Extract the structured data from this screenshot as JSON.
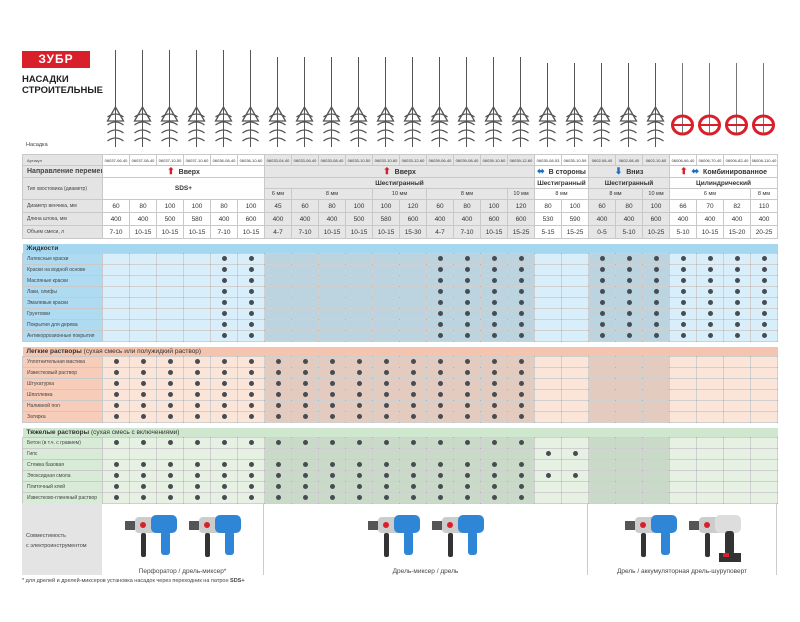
{
  "brand": {
    "logo": "ЗУБР",
    "title_line1": "НАСАДКИ",
    "title_line2": "СТРОИТЕЛЬНЫЕ"
  },
  "colors": {
    "brand_red": "#d9202a",
    "arrow_blue": "#1e6fc0",
    "liquids": "#a5d8f0",
    "light": "#f5c4ae",
    "heavy": "#cfe6cf",
    "dot": "#474c52"
  },
  "labels": {
    "nasadka": "Насадка",
    "article": "Артикул",
    "direction": "Направление перемешивания",
    "shank": "Тип хвостовика (диаметр)",
    "diameter": "Диаметр венчика, мм",
    "length": "Длина штока, мм",
    "volume": "Объем смеси, л"
  },
  "columns": [
    {
      "article": "06037-06-40",
      "d": "60",
      "l": "400",
      "v": "7-10"
    },
    {
      "article": "06037-08-40",
      "d": "80",
      "l": "400",
      "v": "10-15"
    },
    {
      "article": "06037-10-50",
      "d": "100",
      "l": "500",
      "v": "10-15"
    },
    {
      "article": "06037-10-60",
      "d": "100",
      "l": "580",
      "v": "10-15"
    },
    {
      "article": "06036-08-40",
      "d": "80",
      "l": "400",
      "v": "7-10"
    },
    {
      "article": "06036-10-60",
      "d": "100",
      "l": "600",
      "v": "10-15"
    },
    {
      "article": "06033-04-40",
      "d": "45",
      "l": "400",
      "v": "4-7"
    },
    {
      "article": "06033-06-40",
      "d": "60",
      "l": "400",
      "v": "7-10"
    },
    {
      "article": "06033-08-40",
      "d": "80",
      "l": "400",
      "v": "10-15"
    },
    {
      "article": "06033-10-50",
      "d": "100",
      "l": "500",
      "v": "10-15"
    },
    {
      "article": "06033-10-60",
      "d": "100",
      "l": "580",
      "v": "10-15"
    },
    {
      "article": "06033-12-60",
      "d": "120",
      "l": "600",
      "v": "15-30"
    },
    {
      "article": "06039-06-40",
      "d": "60",
      "l": "400",
      "v": "4-7"
    },
    {
      "article": "06039-08-40",
      "d": "80",
      "l": "400",
      "v": "7-10"
    },
    {
      "article": "06039-10-60",
      "d": "100",
      "l": "600",
      "v": "10-15"
    },
    {
      "article": "06039-12-60",
      "d": "120",
      "l": "600",
      "v": "15-25"
    },
    {
      "article": "06035-08-53",
      "d": "80",
      "l": "530",
      "v": "5-15"
    },
    {
      "article": "06035-10-59",
      "d": "100",
      "l": "590",
      "v": "15-25"
    },
    {
      "article": "0602-06-40",
      "d": "60",
      "l": "400",
      "v": "0-5"
    },
    {
      "article": "0602-08-40",
      "d": "80",
      "l": "400",
      "v": "5-10"
    },
    {
      "article": "0602-10-60",
      "d": "100",
      "l": "600",
      "v": "10-25"
    },
    {
      "article": "06006-66-40",
      "d": "66",
      "l": "400",
      "v": "5-10"
    },
    {
      "article": "06006-70-40",
      "d": "70",
      "l": "400",
      "v": "10-15"
    },
    {
      "article": "06006-82-40",
      "d": "82",
      "l": "400",
      "v": "15-20"
    },
    {
      "article": "06008-110-40",
      "d": "110",
      "l": "400",
      "v": "20-25"
    }
  ],
  "directions": [
    {
      "span": 6,
      "label": "Вверх",
      "icons": [
        "arrow-up"
      ]
    },
    {
      "span": 10,
      "label": "Вверх",
      "icons": [
        "arrow-up"
      ]
    },
    {
      "span": 2,
      "label": "В стороны",
      "icons": [
        "arrow-left-right"
      ]
    },
    {
      "span": 3,
      "label": "Вниз",
      "icons": [
        "arrow-down"
      ]
    },
    {
      "span": 4,
      "label": "Комбинированное",
      "icons": [
        "arrow-up",
        "arrow-left-right"
      ]
    }
  ],
  "shanks": [
    {
      "span": 6,
      "label": "SDS+",
      "subs": []
    },
    {
      "span": 10,
      "label": "Шестигранный",
      "subs": [
        {
          "span": 1,
          "label": "6 мм"
        },
        {
          "span": 3,
          "label": "8 мм"
        },
        {
          "span": 2,
          "label": "10 мм"
        },
        {
          "span": 3,
          "label": "8 мм"
        },
        {
          "span": 1,
          "label": "10 мм"
        }
      ]
    },
    {
      "span": 2,
      "label": "Шестигранный",
      "subs": [
        {
          "span": 2,
          "label": "8 мм"
        }
      ]
    },
    {
      "span": 3,
      "label": "Шестигранный",
      "subs": [
        {
          "span": 2,
          "label": "8 мм"
        },
        {
          "span": 1,
          "label": "10 мм"
        }
      ]
    },
    {
      "span": 4,
      "label": "Цилиндрический",
      "subs": [
        {
          "span": 3,
          "label": "6 мм"
        },
        {
          "span": 1,
          "label": "8 мм"
        }
      ]
    }
  ],
  "sections": [
    {
      "title": "Жидкости",
      "subtitle": "",
      "theme": "liquids",
      "rows": [
        {
          "label": "Латексные краски",
          "cols": [
            5,
            6,
            13,
            14,
            15,
            16,
            19,
            20,
            21,
            22,
            23,
            24,
            25
          ]
        },
        {
          "label": "Краски на водной основе",
          "cols": [
            5,
            6,
            13,
            14,
            15,
            16,
            19,
            20,
            21,
            22,
            23,
            24,
            25
          ]
        },
        {
          "label": "Масляные краски",
          "cols": [
            5,
            6,
            13,
            14,
            15,
            16,
            19,
            20,
            21,
            22,
            23,
            24,
            25
          ]
        },
        {
          "label": "Лаки, олифы",
          "cols": [
            5,
            6,
            13,
            14,
            15,
            16,
            19,
            20,
            21,
            22,
            23,
            24,
            25
          ]
        },
        {
          "label": "Эмалевые краски",
          "cols": [
            5,
            6,
            13,
            14,
            15,
            16,
            19,
            20,
            21,
            22,
            23,
            24,
            25
          ]
        },
        {
          "label": "Грунтовки",
          "cols": [
            5,
            6,
            13,
            14,
            15,
            16,
            19,
            20,
            21,
            22,
            23,
            24,
            25
          ]
        },
        {
          "label": "Покрытия для дерева",
          "cols": [
            5,
            6,
            13,
            14,
            15,
            16,
            19,
            20,
            21,
            22,
            23,
            24,
            25
          ]
        },
        {
          "label": "Антикоррозионные покрытия",
          "cols": [
            5,
            6,
            13,
            14,
            15,
            16,
            19,
            20,
            21,
            22,
            23,
            24,
            25
          ]
        }
      ]
    },
    {
      "title": "Легкие растворы",
      "subtitle": " (сухая смесь или полужидкий раствор)",
      "theme": "light",
      "rows": [
        {
          "label": "Уплотнительная мастика",
          "cols": [
            1,
            2,
            3,
            4,
            5,
            6,
            7,
            8,
            9,
            10,
            11,
            12,
            13,
            14,
            15,
            16
          ]
        },
        {
          "label": "Известковый раствор",
          "cols": [
            1,
            2,
            3,
            4,
            5,
            6,
            7,
            8,
            9,
            10,
            11,
            12,
            13,
            14,
            15,
            16
          ]
        },
        {
          "label": "Штукатурка",
          "cols": [
            1,
            2,
            3,
            4,
            5,
            6,
            7,
            8,
            9,
            10,
            11,
            12,
            13,
            14,
            15,
            16
          ]
        },
        {
          "label": "Шпатлевка",
          "cols": [
            1,
            2,
            3,
            4,
            5,
            6,
            7,
            8,
            9,
            10,
            11,
            12,
            13,
            14,
            15,
            16
          ]
        },
        {
          "label": "Наливной пол",
          "cols": [
            1,
            2,
            3,
            4,
            5,
            6,
            7,
            8,
            9,
            10,
            11,
            12,
            13,
            14,
            15,
            16
          ]
        },
        {
          "label": "Затирка",
          "cols": [
            1,
            2,
            3,
            4,
            5,
            6,
            7,
            8,
            9,
            10,
            11,
            12,
            13,
            14,
            15,
            16
          ]
        }
      ]
    },
    {
      "title": "Тяжелые растворы",
      "subtitle": " (сухая смесь с включениями)",
      "theme": "heavy",
      "rows": [
        {
          "label": "Бетон (в т.ч. с гравием)",
          "cols": [
            1,
            2,
            3,
            4,
            5,
            6,
            7,
            8,
            9,
            10,
            11,
            12,
            13,
            14,
            15,
            16
          ]
        },
        {
          "label": "Гипс",
          "cols": [
            17,
            18
          ]
        },
        {
          "label": "Стяжка базовая",
          "cols": [
            1,
            2,
            3,
            4,
            5,
            6,
            7,
            8,
            9,
            10,
            11,
            12,
            13,
            14,
            15,
            16
          ]
        },
        {
          "label": "Эпоксидная смола",
          "cols": [
            1,
            2,
            3,
            4,
            5,
            6,
            7,
            8,
            9,
            10,
            11,
            12,
            13,
            14,
            15,
            16,
            17,
            18
          ]
        },
        {
          "label": "Плиточный клей",
          "cols": [
            1,
            2,
            3,
            4,
            5,
            6,
            7,
            8,
            9,
            10,
            11,
            12,
            13,
            14,
            15,
            16
          ]
        },
        {
          "label": "Известково-глиняный раствор",
          "cols": [
            1,
            2,
            3,
            4,
            5,
            6,
            7,
            8,
            9,
            10,
            11,
            12,
            13,
            14,
            15,
            16
          ]
        }
      ]
    }
  ],
  "tools": {
    "label_line1": "Совместимость",
    "label_line2": "с электроинструментом",
    "groups": [
      {
        "span": 6,
        "caption": "Перфоратор / дрель-миксер*",
        "items": [
          "rotary-hammer",
          "drill-mixer"
        ]
      },
      {
        "span": 12,
        "caption": "Дрель-миксер / дрель",
        "items": [
          "drill-mixer",
          "drill"
        ]
      },
      {
        "span": 7,
        "caption": "Дрель / аккумуляторная дрель-шуруповерт",
        "items": [
          "drill",
          "cordless-drill"
        ]
      }
    ]
  },
  "footnote": {
    "text": "* для дрелей и дрелей-миксеров установка насадок через переходник на патрон ",
    "bold": "SDS+"
  }
}
